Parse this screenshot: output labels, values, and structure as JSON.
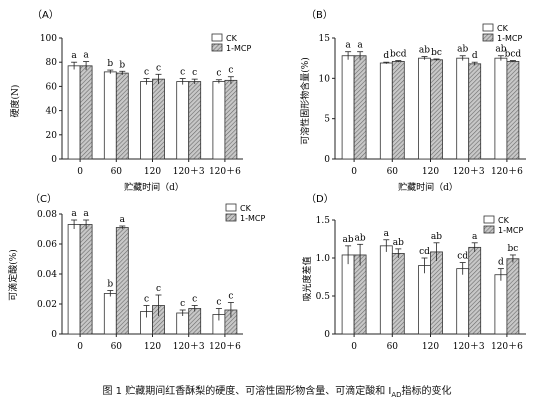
{
  "caption": {
    "main": "图 1   贮藏期间红香酥梨的硬度、可溶性固形物含量、可滴定酸和 I",
    "sub": "AD",
    "tail": "指标的变化"
  },
  "colors": {
    "ck": "#ffffff",
    "mcp_hatch": "#9a9a9a",
    "axis": "#222222"
  },
  "chart_data": [
    {
      "type": "bar",
      "panel_label": "（A）",
      "ylabel": "硬度(N)",
      "xlabel": "贮藏时间（d）",
      "categories": [
        "0",
        "60",
        "120",
        "120＋3",
        "120＋6"
      ],
      "ylim": [
        0,
        100
      ],
      "yticks": [
        "0",
        "20",
        "40",
        "60",
        "80",
        "100"
      ],
      "yticks_values": [
        0,
        20,
        40,
        60,
        80,
        100
      ],
      "legend_position": "top-right",
      "series": [
        {
          "name": "CK",
          "values": [
            77,
            72,
            64,
            64,
            64
          ],
          "errors": [
            3,
            1.5,
            2.5,
            2.5,
            1.5
          ],
          "letters": [
            "a",
            "b",
            "c",
            "c",
            "c"
          ]
        },
        {
          "name": "1-MCP",
          "values": [
            77,
            71,
            66,
            64,
            65
          ],
          "errors": [
            3.5,
            1.5,
            4,
            2,
            3
          ],
          "letters": [
            "a",
            "b",
            "c",
            "c",
            "c"
          ]
        }
      ]
    },
    {
      "type": "bar",
      "panel_label": "（B）",
      "ylabel": "可溶性固形物含量(%)",
      "xlabel": "贮藏时间（d）",
      "categories": [
        "0",
        "60",
        "120",
        "120＋3",
        "120＋6"
      ],
      "ylim": [
        0,
        15
      ],
      "yticks": [
        "0",
        "5",
        "10",
        "15"
      ],
      "yticks_values": [
        0,
        5,
        10,
        15
      ],
      "legend_position": "top-right",
      "series": [
        {
          "name": "CK",
          "values": [
            12.8,
            11.9,
            12.5,
            12.5,
            12.5
          ],
          "errors": [
            0.5,
            0.1,
            0.2,
            0.3,
            0.3
          ],
          "letters": [
            "a",
            "d",
            "ab",
            "ab",
            "ab"
          ]
        },
        {
          "name": "1-MCP",
          "values": [
            12.8,
            12.1,
            12.3,
            11.8,
            12.1
          ],
          "errors": [
            0.5,
            0.1,
            0.1,
            0.2,
            0.1
          ],
          "letters": [
            "a",
            "bcd",
            "bc",
            "d",
            "bcd"
          ]
        }
      ]
    },
    {
      "type": "bar",
      "panel_label": "（C）",
      "ylabel": "可滴定酸(%)",
      "xlabel": "",
      "categories": [
        "0",
        "60",
        "120",
        "120＋3",
        "120＋6"
      ],
      "ylim": [
        0,
        0.08
      ],
      "yticks": [
        "0",
        "0.02",
        "0.04",
        "0.06",
        "0.08"
      ],
      "yticks_values": [
        0,
        0.02,
        0.04,
        0.06,
        0.08
      ],
      "legend_position": "top-right",
      "series": [
        {
          "name": "CK",
          "values": [
            0.073,
            0.027,
            0.015,
            0.014,
            0.013
          ],
          "errors": [
            0.003,
            0.002,
            0.004,
            0.002,
            0.004
          ],
          "letters": [
            "a",
            "b",
            "c",
            "c",
            "c"
          ]
        },
        {
          "name": "1-MCP",
          "values": [
            0.073,
            0.071,
            0.019,
            0.017,
            0.016
          ],
          "errors": [
            0.003,
            0.001,
            0.007,
            0.002,
            0.005
          ],
          "letters": [
            "a",
            "a",
            "c",
            "c",
            "c"
          ]
        }
      ]
    },
    {
      "type": "bar",
      "panel_label": "（D）",
      "ylabel": "吸光度差值",
      "xlabel": "",
      "categories": [
        "0",
        "60",
        "120",
        "120＋3",
        "120＋6"
      ],
      "ylim": [
        0,
        1.5
      ],
      "yticks": [
        "0",
        "0.5",
        "1.0",
        "1.5"
      ],
      "yticks_values": [
        0,
        0.5,
        1.0,
        1.5
      ],
      "legend_position": "top-right",
      "series": [
        {
          "name": "CK",
          "values": [
            1.04,
            1.16,
            0.9,
            0.86,
            0.78
          ],
          "errors": [
            0.12,
            0.08,
            0.1,
            0.08,
            0.08
          ],
          "letters": [
            "ab",
            "a",
            "cd",
            "cd",
            "d"
          ]
        },
        {
          "name": "1-MCP",
          "values": [
            1.04,
            1.06,
            1.08,
            1.14,
            0.99
          ],
          "errors": [
            0.14,
            0.06,
            0.12,
            0.06,
            0.05
          ],
          "letters": [
            "ab",
            "ab",
            "ab",
            "a",
            "bc"
          ]
        }
      ]
    }
  ]
}
